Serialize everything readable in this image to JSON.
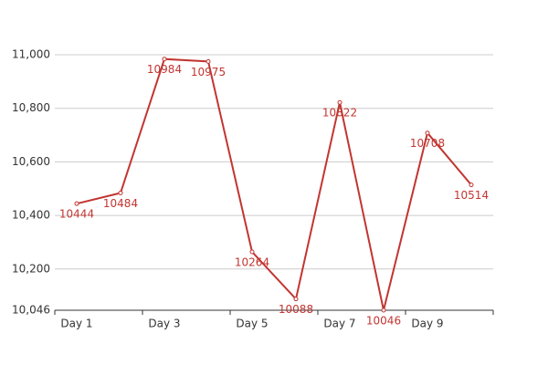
{
  "chart_data": {
    "type": "line",
    "categories": [
      "Day 1",
      null,
      "Day 3",
      null,
      "Day 5",
      null,
      "Day 7",
      null,
      "Day 9",
      null
    ],
    "values": [
      10444,
      10484,
      10984,
      10975,
      10264,
      10088,
      10822,
      10046,
      10708,
      10514
    ],
    "color": "#c23531",
    "ylim": [
      10046,
      11000
    ],
    "yticks": [
      {
        "value": 10046,
        "label": "10,046"
      },
      {
        "value": 10200,
        "label": "10,200"
      },
      {
        "value": 10400,
        "label": "10,400"
      },
      {
        "value": 10600,
        "label": "10,600"
      },
      {
        "value": 10800,
        "label": "10,800"
      },
      {
        "value": 11000,
        "label": "11,000"
      }
    ],
    "grid": true
  }
}
